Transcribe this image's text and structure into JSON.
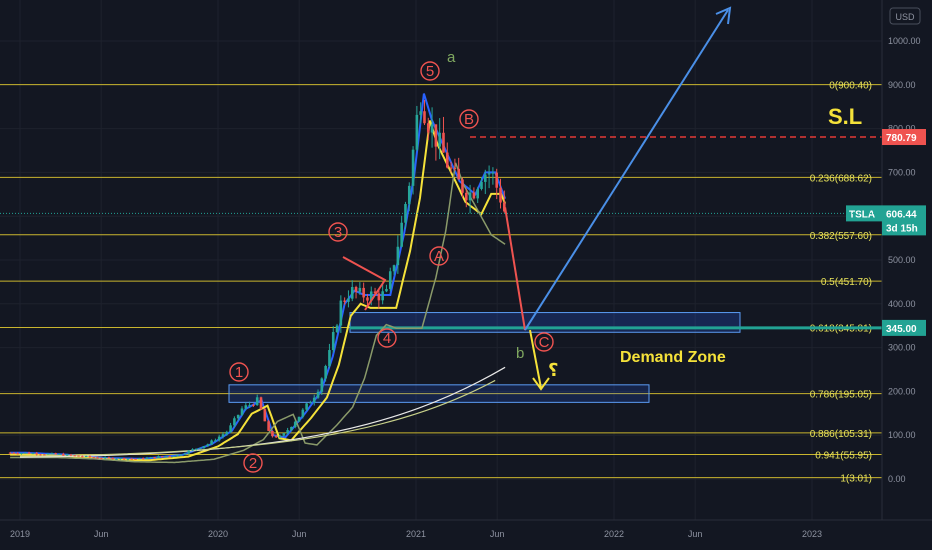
{
  "chart_data": {
    "type": "candlestick",
    "symbol": "TSLA",
    "currency": "USD",
    "price_axis": {
      "min": -60,
      "max": 1080,
      "ticks": [
        "1000.00",
        "900.00",
        "800.00",
        "700.00",
        "600.00",
        "500.00",
        "400.00",
        "300.00",
        "200.00",
        "100.00",
        "0.00"
      ]
    },
    "time_axis": {
      "ticks": [
        "2019",
        "Jun",
        "2020",
        "Jun",
        "2021",
        "Jun",
        "2022",
        "Jun",
        "2023"
      ]
    },
    "current_price": {
      "symbol": "TSLA",
      "value": "606.44",
      "countdown": "3d 15h",
      "price": 606.44
    },
    "stop_loss_tag": {
      "value": "780.79",
      "price": 780.79
    },
    "target_tag": {
      "value": "345.00",
      "price": 345.0
    },
    "fib_levels": [
      {
        "label": "0(900.40)",
        "price": 900.4
      },
      {
        "label": "0.236(688.62)",
        "price": 688.62
      },
      {
        "label": "0.382(557.60)",
        "price": 557.6
      },
      {
        "label": "0.5(451.70)",
        "price": 451.7
      },
      {
        "label": "0.618(345.81)",
        "price": 345.81
      },
      {
        "label": "0.786(195.05)",
        "price": 195.05
      },
      {
        "label": "0.886(105.31)",
        "price": 105.31
      },
      {
        "label": "0.941(55.95)",
        "price": 55.95
      },
      {
        "label": "1(3.01)",
        "price": 3.01
      }
    ],
    "annotations": {
      "stop_loss": "S.L",
      "demand_zone": "Demand Zone",
      "waves": [
        "1",
        "2",
        "3",
        "4",
        "5",
        "A",
        "B",
        "C"
      ],
      "sub_waves": [
        "a",
        "b"
      ],
      "arabic": "؟"
    },
    "price_series_weekly": [
      [
        2019.0,
        60
      ],
      [
        2019.2,
        56
      ],
      [
        2019.4,
        48
      ],
      [
        2019.6,
        46
      ],
      [
        2019.8,
        55
      ],
      [
        2019.95,
        80
      ],
      [
        2020.05,
        110
      ],
      [
        2020.12,
        160
      ],
      [
        2020.2,
        180
      ],
      [
        2020.26,
        100
      ],
      [
        2020.32,
        95
      ],
      [
        2020.42,
        150
      ],
      [
        2020.5,
        200
      ],
      [
        2020.56,
        280
      ],
      [
        2020.62,
        400
      ],
      [
        2020.67,
        430
      ],
      [
        2020.72,
        420
      ],
      [
        2020.78,
        420
      ],
      [
        2020.85,
        420
      ],
      [
        2020.92,
        560
      ],
      [
        2020.97,
        690
      ],
      [
        2021.02,
        880
      ],
      [
        2021.06,
        820
      ],
      [
        2021.12,
        760
      ],
      [
        2021.2,
        680
      ],
      [
        2021.28,
        650
      ],
      [
        2021.33,
        700
      ],
      [
        2021.38,
        700
      ],
      [
        2021.43,
        640
      ],
      [
        2021.45,
        606
      ]
    ]
  }
}
